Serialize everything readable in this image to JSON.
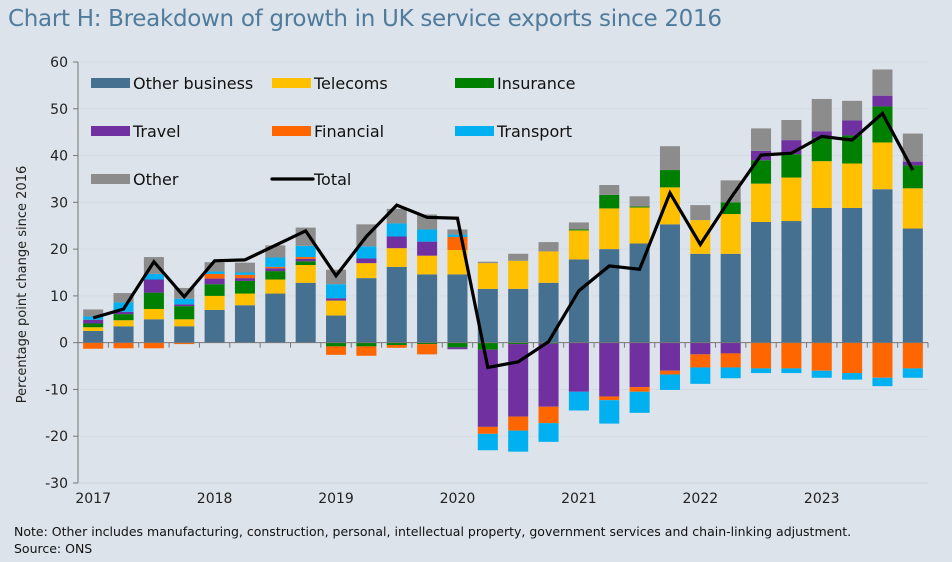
{
  "header": {
    "title": "Chart H: Breakdown of growth in UK service exports since 2016"
  },
  "footer": {
    "note": "Note: Other includes manufacturing, construction, personal, intellectual property, government services and chain-linking adjustment.",
    "source": "Source: ONS"
  },
  "chart_data": {
    "type": "bar",
    "stacked": true,
    "title": "Chart H: Breakdown of growth in UK service exports since 2016",
    "xlabel": "",
    "ylabel": "Percentage point change since 2016",
    "ylim": [
      -30,
      60
    ],
    "yticks": [
      60,
      50,
      40,
      30,
      20,
      10,
      0,
      -10,
      -20,
      -30
    ],
    "ytick_labels": [
      "60",
      "50",
      "40",
      "30",
      "20",
      "10",
      "0",
      "-10",
      "-20",
      "-30"
    ],
    "grid": true,
    "legend_position": "top-left",
    "x_tick_labels": [
      "2017",
      "2018",
      "2019",
      "2020",
      "2021",
      "2022",
      "2023"
    ],
    "categories": [
      "2017Q1",
      "2017Q2",
      "2017Q3",
      "2017Q4",
      "2018Q1",
      "2018Q2",
      "2018Q3",
      "2018Q4",
      "2019Q1",
      "2019Q2",
      "2019Q3",
      "2019Q4",
      "2020Q1",
      "2020Q2",
      "2020Q3",
      "2020Q4",
      "2021Q1",
      "2021Q2",
      "2021Q3",
      "2021Q4",
      "2022Q1",
      "2022Q2",
      "2022Q3",
      "2022Q4",
      "2023Q1",
      "2023Q2",
      "2023Q3",
      "2023Q4"
    ],
    "series": [
      {
        "name": "Other business",
        "color": "#46708f",
        "values": [
          2.5,
          3.5,
          5.0,
          3.5,
          7.0,
          8.0,
          10.5,
          12.8,
          5.8,
          13.8,
          16.2,
          14.6,
          14.6,
          11.5,
          11.5,
          12.8,
          17.8,
          20.0,
          21.2,
          25.3,
          19.0,
          19.0,
          25.8,
          26.0,
          28.8,
          28.8,
          32.8,
          24.4
        ]
      },
      {
        "name": "Telecoms",
        "color": "#ffc000",
        "values": [
          0.8,
          1.3,
          2.2,
          1.5,
          3.0,
          2.5,
          3.0,
          3.8,
          3.2,
          3.2,
          4.0,
          4.0,
          5.2,
          5.5,
          6.0,
          6.7,
          6.2,
          8.7,
          7.7,
          7.9,
          7.2,
          8.5,
          8.2,
          9.3,
          10.0,
          9.5,
          10.0,
          8.6
        ]
      },
      {
        "name": "Insurance",
        "color": "#008000",
        "values": [
          0.8,
          1.3,
          3.5,
          2.8,
          2.5,
          2.7,
          1.8,
          0.8,
          -0.8,
          -0.8,
          -0.5,
          -0.3,
          -1.0,
          -1.5,
          -0.3,
          -0.2,
          0.2,
          2.9,
          0.2,
          3.7,
          0.0,
          2.5,
          5.0,
          5.0,
          5.0,
          6.0,
          7.7,
          4.9
        ]
      },
      {
        "name": "Travel",
        "color": "#7030a0",
        "values": [
          0.8,
          0.5,
          2.8,
          0.4,
          1.2,
          0.6,
          0.6,
          0.5,
          0.5,
          1.0,
          2.5,
          3.0,
          -0.4,
          -16.5,
          -15.5,
          -13.5,
          -10.5,
          -11.5,
          -9.5,
          -6.0,
          -2.5,
          -2.3,
          2.0,
          3.0,
          1.4,
          3.2,
          2.3,
          0.8
        ]
      },
      {
        "name": "Financial",
        "color": "#ff6600",
        "values": [
          -1.3,
          -1.2,
          -1.2,
          -0.3,
          1.0,
          0.7,
          0.3,
          0.4,
          -1.8,
          -2.0,
          -0.6,
          -2.2,
          2.8,
          -1.5,
          -3.0,
          -3.5,
          0.0,
          -0.8,
          -1.0,
          -0.8,
          -2.8,
          -3.0,
          -5.5,
          -5.5,
          -6.0,
          -6.5,
          -7.5,
          -5.5
        ]
      },
      {
        "name": "Transport",
        "color": "#00b0f0",
        "values": [
          0.7,
          2.0,
          1.2,
          1.2,
          0.5,
          0.5,
          2.0,
          2.4,
          3.0,
          2.6,
          2.8,
          2.6,
          0.5,
          -3.5,
          -4.5,
          -4.0,
          -4.0,
          -5.0,
          -4.5,
          -3.3,
          -3.5,
          -2.3,
          -1.0,
          -1.0,
          -1.5,
          -1.4,
          -1.8,
          -2.0
        ]
      },
      {
        "name": "Other",
        "color": "#8c8c8c",
        "values": [
          1.5,
          2.0,
          3.6,
          2.3,
          2.0,
          2.1,
          2.6,
          3.9,
          3.1,
          4.7,
          3.1,
          3.2,
          1.1,
          0.3,
          1.5,
          2.0,
          1.5,
          2.1,
          2.2,
          5.1,
          3.2,
          4.7,
          4.8,
          4.3,
          6.9,
          4.2,
          5.6,
          6.0
        ]
      }
    ],
    "line_series": {
      "name": "Total",
      "color": "#000000",
      "values": [
        5.3,
        7.2,
        17.3,
        9.8,
        17.5,
        17.7,
        20.8,
        23.9,
        14.3,
        22.7,
        29.4,
        26.8,
        26.6,
        -5.3,
        -4.1,
        0.2,
        11.1,
        16.4,
        15.7,
        32.0,
        21.0,
        30.9,
        40.1,
        40.5,
        44.1,
        43.3,
        49.0,
        36.9
      ]
    }
  }
}
